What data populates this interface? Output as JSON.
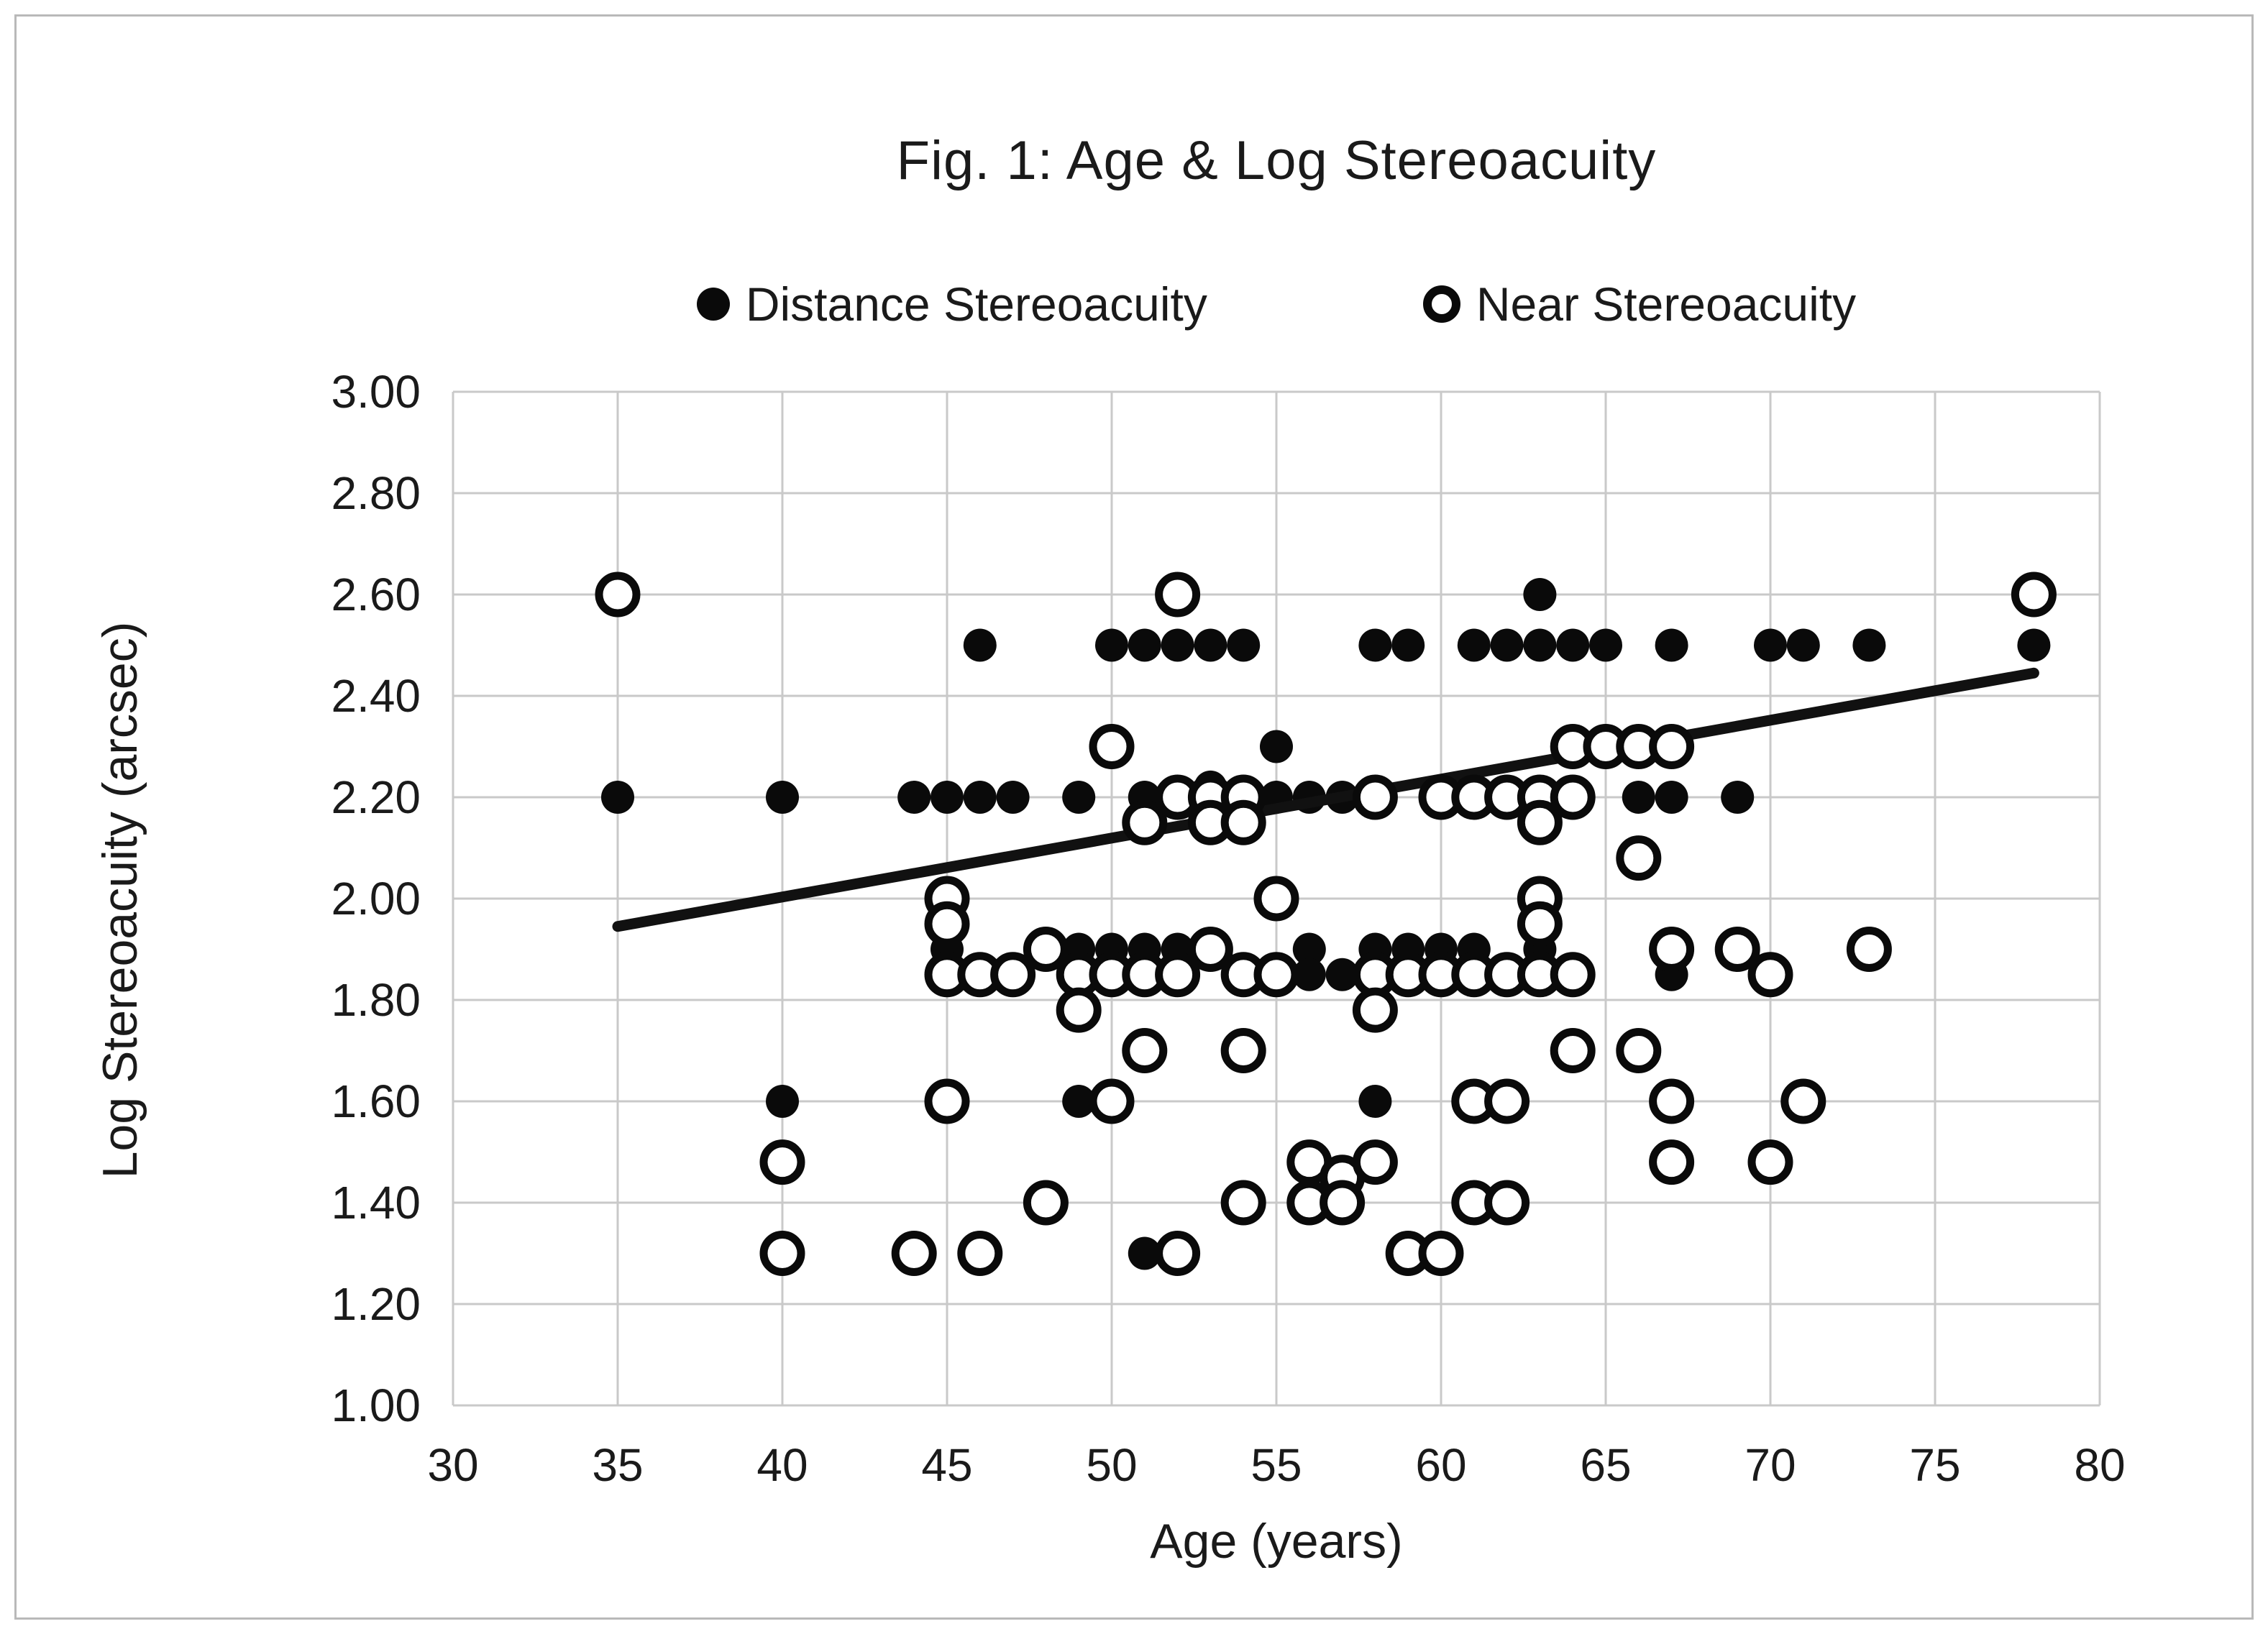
{
  "figure": {
    "title": "Fig. 1: Age & Log  Stereoacuity",
    "xlabel": "Age (years)",
    "ylabel": "Log  Stereoacuity (arcsec)"
  },
  "chart_data": {
    "type": "scatter",
    "title": "Fig. 1: Age & Log  Stereoacuity",
    "xlabel": "Age (years)",
    "ylabel": "Log  Stereoacuity (arcsec)",
    "xlim": [
      30,
      80
    ],
    "ylim": [
      1.0,
      3.0
    ],
    "x_ticks": [
      30,
      35,
      40,
      45,
      50,
      55,
      60,
      65,
      70,
      75,
      80
    ],
    "y_ticks": [
      1.0,
      1.2,
      1.4,
      1.6,
      1.8,
      2.0,
      2.2,
      2.4,
      2.6,
      2.8,
      3.0
    ],
    "y_tick_labels": [
      "1.00",
      "1.20",
      "1.40",
      "1.60",
      "1.80",
      "2.00",
      "2.20",
      "2.40",
      "2.60",
      "2.80",
      "3.00"
    ],
    "grid": true,
    "legend_position": "top",
    "series": [
      {
        "name": "Distance Stereoacuity",
        "marker": "filled-circle",
        "points": [
          [
            35,
            2.2
          ],
          [
            40,
            2.2
          ],
          [
            40,
            1.6
          ],
          [
            44,
            2.2
          ],
          [
            45,
            2.2
          ],
          [
            45,
            1.9
          ],
          [
            46,
            2.5
          ],
          [
            46,
            2.2
          ],
          [
            46,
            1.85
          ],
          [
            47,
            2.2
          ],
          [
            47,
            1.85
          ],
          [
            48,
            1.9
          ],
          [
            49,
            2.2
          ],
          [
            49,
            1.9
          ],
          [
            49,
            1.6
          ],
          [
            50,
            2.5
          ],
          [
            50,
            1.9
          ],
          [
            50,
            1.6
          ],
          [
            51,
            2.5
          ],
          [
            51,
            2.2
          ],
          [
            51,
            1.9
          ],
          [
            51,
            1.3
          ],
          [
            52,
            2.5
          ],
          [
            52,
            2.2
          ],
          [
            52,
            1.9
          ],
          [
            52,
            1.3
          ],
          [
            53,
            2.5
          ],
          [
            53,
            2.22
          ],
          [
            53,
            2.18
          ],
          [
            53,
            1.9
          ],
          [
            54,
            2.5
          ],
          [
            54,
            2.2
          ],
          [
            54,
            1.85
          ],
          [
            55,
            2.3
          ],
          [
            55,
            2.2
          ],
          [
            55,
            1.85
          ],
          [
            56,
            2.2
          ],
          [
            56,
            1.9
          ],
          [
            56,
            1.85
          ],
          [
            57,
            2.2
          ],
          [
            57,
            1.85
          ],
          [
            58,
            2.5
          ],
          [
            58,
            2.2
          ],
          [
            58,
            1.9
          ],
          [
            58,
            1.6
          ],
          [
            59,
            2.5
          ],
          [
            59,
            1.9
          ],
          [
            59,
            1.85
          ],
          [
            60,
            2.2
          ],
          [
            60,
            1.9
          ],
          [
            60,
            1.85
          ],
          [
            61,
            2.5
          ],
          [
            61,
            2.2
          ],
          [
            61,
            1.9
          ],
          [
            62,
            2.5
          ],
          [
            62,
            2.2
          ],
          [
            62,
            1.85
          ],
          [
            63,
            2.6
          ],
          [
            63,
            2.5
          ],
          [
            63,
            2.2
          ],
          [
            63,
            1.9
          ],
          [
            64,
            2.5
          ],
          [
            64,
            2.2
          ],
          [
            64,
            1.85
          ],
          [
            65,
            2.5
          ],
          [
            66,
            2.2
          ],
          [
            67,
            2.5
          ],
          [
            67,
            2.2
          ],
          [
            67,
            1.85
          ],
          [
            69,
            2.2
          ],
          [
            70,
            2.5
          ],
          [
            71,
            2.5
          ],
          [
            73,
            2.5
          ],
          [
            78,
            2.5
          ]
        ]
      },
      {
        "name": "Near Stereoacuity",
        "marker": "open-circle",
        "points": [
          [
            35,
            2.6
          ],
          [
            40,
            1.48
          ],
          [
            40,
            1.3
          ],
          [
            44,
            1.3
          ],
          [
            45,
            2.0
          ],
          [
            45,
            1.95
          ],
          [
            45,
            1.85
          ],
          [
            45,
            1.6
          ],
          [
            46,
            1.85
          ],
          [
            46,
            1.3
          ],
          [
            47,
            1.85
          ],
          [
            48,
            1.9
          ],
          [
            48,
            1.4
          ],
          [
            49,
            1.85
          ],
          [
            49,
            1.78
          ],
          [
            50,
            2.3
          ],
          [
            50,
            1.85
          ],
          [
            50,
            1.6
          ],
          [
            51,
            2.15
          ],
          [
            51,
            1.85
          ],
          [
            51,
            1.7
          ],
          [
            52,
            2.6
          ],
          [
            52,
            2.2
          ],
          [
            52,
            1.85
          ],
          [
            52,
            1.3
          ],
          [
            53,
            2.2
          ],
          [
            53,
            2.15
          ],
          [
            53,
            1.9
          ],
          [
            54,
            2.2
          ],
          [
            54,
            2.15
          ],
          [
            54,
            1.85
          ],
          [
            54,
            1.7
          ],
          [
            54,
            1.4
          ],
          [
            55,
            2.0
          ],
          [
            55,
            1.85
          ],
          [
            56,
            1.48
          ],
          [
            56,
            1.4
          ],
          [
            57,
            1.45
          ],
          [
            57,
            1.4
          ],
          [
            58,
            2.2
          ],
          [
            58,
            1.85
          ],
          [
            58,
            1.78
          ],
          [
            58,
            1.48
          ],
          [
            59,
            1.85
          ],
          [
            59,
            1.3
          ],
          [
            60,
            2.2
          ],
          [
            60,
            1.85
          ],
          [
            60,
            1.3
          ],
          [
            61,
            2.2
          ],
          [
            61,
            1.85
          ],
          [
            61,
            1.6
          ],
          [
            61,
            1.4
          ],
          [
            62,
            2.2
          ],
          [
            62,
            1.85
          ],
          [
            62,
            1.6
          ],
          [
            62,
            1.4
          ],
          [
            63,
            2.2
          ],
          [
            63,
            2.15
          ],
          [
            63,
            2.0
          ],
          [
            63,
            1.95
          ],
          [
            63,
            1.85
          ],
          [
            64,
            2.3
          ],
          [
            64,
            2.2
          ],
          [
            64,
            1.85
          ],
          [
            64,
            1.7
          ],
          [
            65,
            2.3
          ],
          [
            66,
            2.3
          ],
          [
            66,
            2.08
          ],
          [
            66,
            1.7
          ],
          [
            67,
            2.3
          ],
          [
            67,
            1.9
          ],
          [
            67,
            1.6
          ],
          [
            67,
            1.48
          ],
          [
            69,
            1.9
          ],
          [
            70,
            1.85
          ],
          [
            70,
            1.48
          ],
          [
            71,
            1.6
          ],
          [
            73,
            1.9
          ],
          [
            78,
            2.6
          ]
        ]
      }
    ],
    "trendline": {
      "x1": 35,
      "y1": 1.945,
      "x2": 78,
      "y2": 2.445
    },
    "colors": {
      "marker": "#0a0a0a",
      "gridline": "#c9c9c9",
      "trendline": "#111111"
    }
  }
}
